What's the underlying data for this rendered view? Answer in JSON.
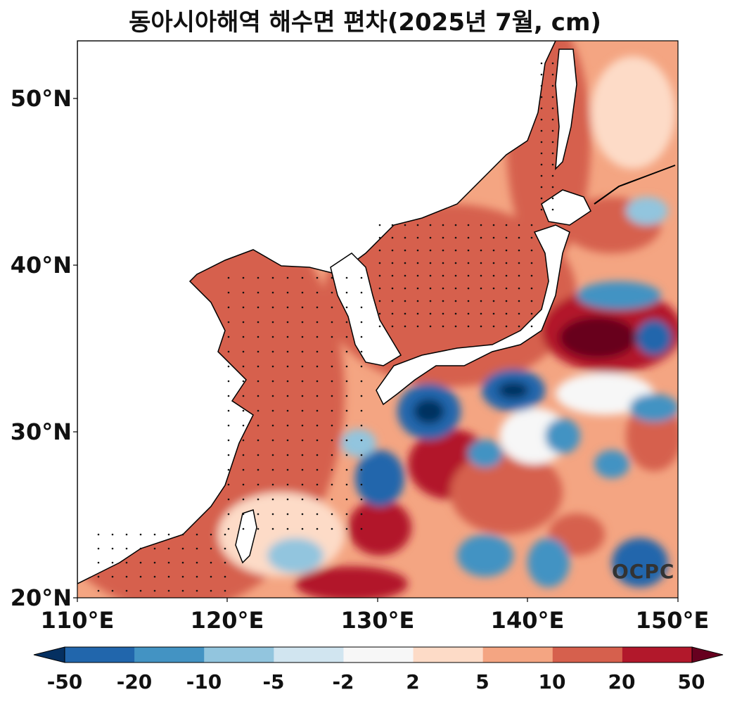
{
  "title": "동아시아해역 해수면 편차(2025년 7월, cm)",
  "lat_labels": [
    "50°N",
    "40°N",
    "30°N",
    "20°N"
  ],
  "lon_labels": [
    "110°E",
    "120°E",
    "130°E",
    "150°E",
    "140°E"
  ],
  "map": {
    "lon_range": [
      110,
      150
    ],
    "lat_range": [
      20,
      53.5
    ],
    "lat_ticks": [
      50,
      40,
      30,
      20
    ],
    "lon_ticks": [
      110,
      120,
      130,
      140,
      150
    ]
  },
  "colorbar": {
    "labels": [
      "-50",
      "-20",
      "-10",
      "-5",
      "-2",
      "2",
      "5",
      "10",
      "20",
      "50"
    ],
    "colors": [
      "#053061",
      "#2166ac",
      "#4393c3",
      "#92c5de",
      "#d1e5f0",
      "#f7f7f7",
      "#fddbc7",
      "#f4a582",
      "#d6604d",
      "#b2182b",
      "#67001f"
    ],
    "extend": "both"
  },
  "watermark": "OCPC"
}
